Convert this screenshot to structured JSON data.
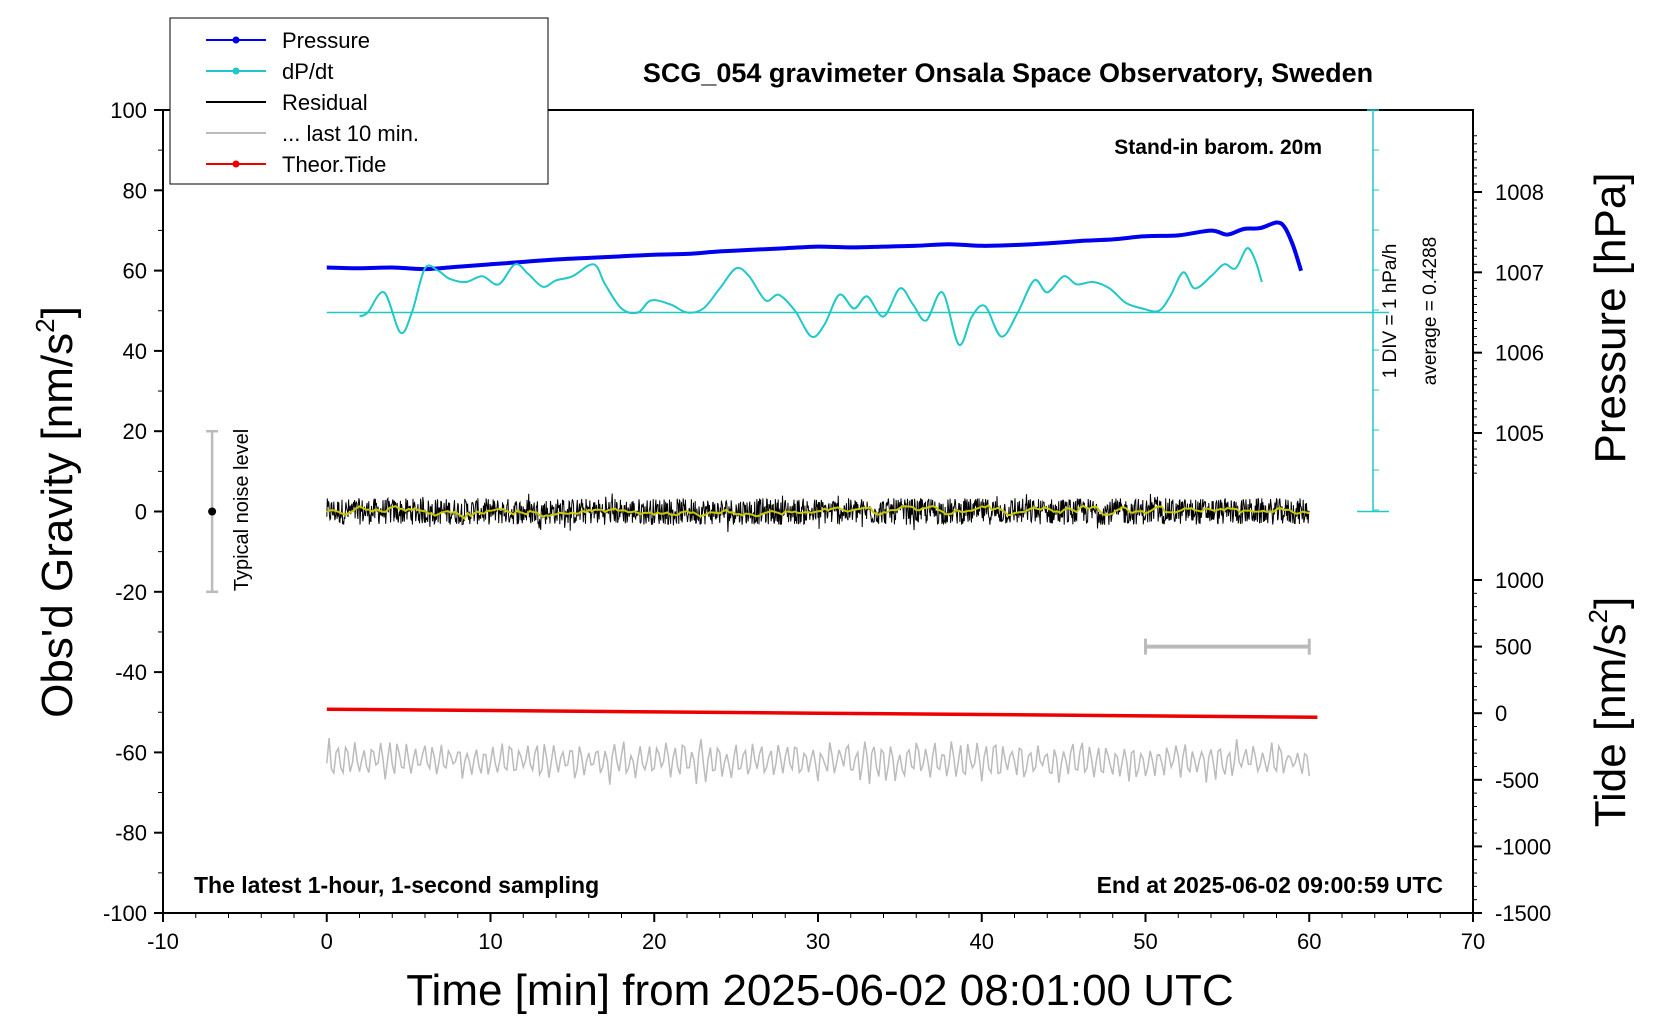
{
  "chart_data": {
    "type": "line",
    "title": "SCG_054 gravimeter Onsala Space Observatory, Sweden",
    "xlabel": "Time [min] from 2025-06-02 08:01:00 UTC",
    "xlim": [
      -10,
      70
    ],
    "x_ticks": [
      -10,
      0,
      10,
      20,
      30,
      40,
      50,
      60,
      70
    ],
    "left_axis": {
      "label": "Obs'd Gravity [nm/s",
      "label_sup": "2",
      "label_end": "]",
      "ylim": [
        -100,
        100
      ],
      "ticks": [
        -100,
        -80,
        -60,
        -40,
        -20,
        0,
        20,
        40,
        60,
        80,
        100
      ]
    },
    "pressure_axis": {
      "label": "Pressure [hPa]",
      "ticks": [
        1005,
        1006,
        1007,
        1008
      ],
      "value_range": [
        1004.0,
        1009.0
      ]
    },
    "tide_axis": {
      "label": "Tide [nm/s",
      "label_sup": "2",
      "label_end": "]",
      "ylim": [
        -1500,
        1000
      ],
      "ticks": [
        1000,
        500,
        0,
        -500,
        -1000,
        -1500
      ]
    },
    "legend": {
      "placement": "top-left",
      "entries": [
        {
          "label": "Pressure",
          "color": "#0000ee",
          "marker": true
        },
        {
          "label": "dP/dt",
          "color": "#20c8c8",
          "marker": true
        },
        {
          "label": "Residual",
          "color": "#000000",
          "marker": false
        },
        {
          "label": "... last 10 min.",
          "color": "#bbbbbb",
          "marker": false
        },
        {
          "label": "Theor.Tide",
          "color": "#ee0000",
          "marker": true
        }
      ]
    },
    "annotations": {
      "barometer": "Stand-in barom. 20m",
      "div_scale": "1 DIV = 1 hPa/h",
      "average": "average = 0.4288",
      "noise": "Typical noise level",
      "latest": "The latest 1-hour, 1-second sampling",
      "end": "End at 2025-06-02 09:00:59 UTC"
    },
    "noise_bar": {
      "x": -7,
      "y": 0,
      "low": -20,
      "high": 20
    },
    "last10_bar": {
      "x_start": 50,
      "x_end": 60
    },
    "dpdt_baseline_hPa": 1006.5,
    "series": [
      {
        "name": "Pressure",
        "axis": "pressure",
        "color": "#0000ee",
        "x": [
          0,
          2,
          4,
          6,
          8,
          10,
          12,
          14,
          16,
          18,
          20,
          22,
          24,
          26,
          28,
          30,
          32,
          34,
          36,
          38,
          40,
          42,
          44,
          46,
          48,
          50,
          52,
          54,
          55,
          56,
          57,
          58,
          58.5,
          59,
          59.5
        ],
        "values": [
          1007.06,
          1007.05,
          1007.06,
          1007.04,
          1007.07,
          1007.1,
          1007.13,
          1007.16,
          1007.18,
          1007.2,
          1007.22,
          1007.23,
          1007.26,
          1007.28,
          1007.3,
          1007.32,
          1007.31,
          1007.32,
          1007.33,
          1007.35,
          1007.33,
          1007.34,
          1007.36,
          1007.39,
          1007.41,
          1007.45,
          1007.46,
          1007.52,
          1007.47,
          1007.54,
          1007.55,
          1007.62,
          1007.56,
          1007.34,
          1007.02
        ]
      },
      {
        "name": "dP/dt",
        "axis": "pressure",
        "color": "#20c8c8",
        "x": [
          2,
          2.5,
          3.5,
          4.5,
          5.2,
          6,
          6.8,
          7.5,
          8.5,
          9.5,
          10.5,
          11.5,
          12.3,
          13.2,
          14,
          15,
          16.3,
          17,
          18,
          19,
          19.8,
          21,
          22,
          23,
          24,
          25,
          25.8,
          26.8,
          27.6,
          28.6,
          29.6,
          30.4,
          31.3,
          32.2,
          33,
          34,
          35,
          35.8,
          36.6,
          37.6,
          38.6,
          39.4,
          40.2,
          41.2,
          42.2,
          43.2,
          44,
          45,
          45.8,
          46.8,
          47.8,
          48.8,
          49.8,
          50.8,
          51.5,
          52.3,
          53,
          54,
          54.8,
          55.5,
          56.2,
          56.7,
          57.1
        ],
        "values": [
          1006.45,
          1006.5,
          1006.75,
          1006.25,
          1006.5,
          1007.05,
          1007.02,
          1006.92,
          1006.88,
          1006.95,
          1006.85,
          1007.1,
          1006.98,
          1006.82,
          1006.9,
          1006.95,
          1007.1,
          1006.85,
          1006.55,
          1006.5,
          1006.65,
          1006.6,
          1006.5,
          1006.55,
          1006.8,
          1007.05,
          1006.95,
          1006.65,
          1006.72,
          1006.52,
          1006.2,
          1006.35,
          1006.72,
          1006.55,
          1006.7,
          1006.45,
          1006.8,
          1006.6,
          1006.4,
          1006.75,
          1006.1,
          1006.45,
          1006.58,
          1006.2,
          1006.5,
          1006.9,
          1006.75,
          1006.95,
          1006.85,
          1006.88,
          1006.8,
          1006.62,
          1006.55,
          1006.52,
          1006.7,
          1007.0,
          1006.8,
          1006.95,
          1007.1,
          1007.05,
          1007.3,
          1007.15,
          1006.88
        ]
      },
      {
        "name": "Residual",
        "axis": "gravity",
        "color": "#000000",
        "x_range": [
          0,
          60
        ],
        "amplitude": 6,
        "center": 0,
        "mean_line_color": "#c8c800"
      },
      {
        "name": "... last 10 min.",
        "axis": "gravity",
        "color": "#bbbbbb",
        "x_range": [
          0,
          60
        ],
        "center": -62,
        "amplitude": 3.5
      },
      {
        "name": "Theor.Tide",
        "axis": "tide",
        "color": "#ee0000",
        "x": [
          0,
          10,
          20,
          30,
          40,
          50,
          60.5
        ],
        "values": [
          30,
          20,
          10,
          0,
          -10,
          -20,
          -30
        ]
      }
    ]
  }
}
